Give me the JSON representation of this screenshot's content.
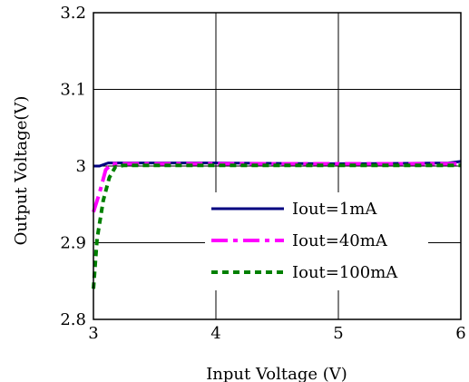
{
  "chart_data": {
    "type": "line",
    "title": "",
    "xlabel": "Input Voltage (V)",
    "ylabel": "Output Voltage(V)",
    "xlim": [
      3,
      6
    ],
    "ylim": [
      2.8,
      3.2
    ],
    "x_ticks": [
      3,
      4,
      5,
      6
    ],
    "x_tick_labels": [
      "3",
      "4",
      "5",
      "6"
    ],
    "y_ticks": [
      2.8,
      2.9,
      3.0,
      3.1,
      3.2
    ],
    "y_tick_labels": [
      "2.8",
      "2.9",
      "3",
      "3.1",
      "3.2"
    ],
    "grid": true,
    "legend_position": "center-right",
    "series": [
      {
        "name": "Iout=1mA",
        "color": "#000080",
        "dash": "solid",
        "x": [
          3.0,
          3.05,
          3.12,
          3.2,
          4.0,
          5.0,
          5.9,
          6.0
        ],
        "y": [
          3.0,
          3.0,
          3.004,
          3.004,
          3.004,
          3.003,
          3.004,
          3.006
        ]
      },
      {
        "name": "Iout=40mA",
        "color": "#ff00ff",
        "dash": "dashdot",
        "x": [
          3.0,
          3.05,
          3.1,
          3.15,
          3.2,
          4.0,
          5.0,
          6.0
        ],
        "y": [
          2.94,
          2.965,
          2.995,
          3.003,
          3.003,
          3.003,
          3.003,
          3.003
        ]
      },
      {
        "name": "Iout=100mA",
        "color": "#008000",
        "dash": "dotted",
        "x": [
          3.0,
          3.03,
          3.08,
          3.13,
          3.18,
          3.25,
          4.0,
          5.0,
          6.0
        ],
        "y": [
          2.84,
          2.905,
          2.955,
          2.985,
          2.999,
          3.001,
          3.001,
          3.001,
          3.001
        ]
      }
    ]
  }
}
